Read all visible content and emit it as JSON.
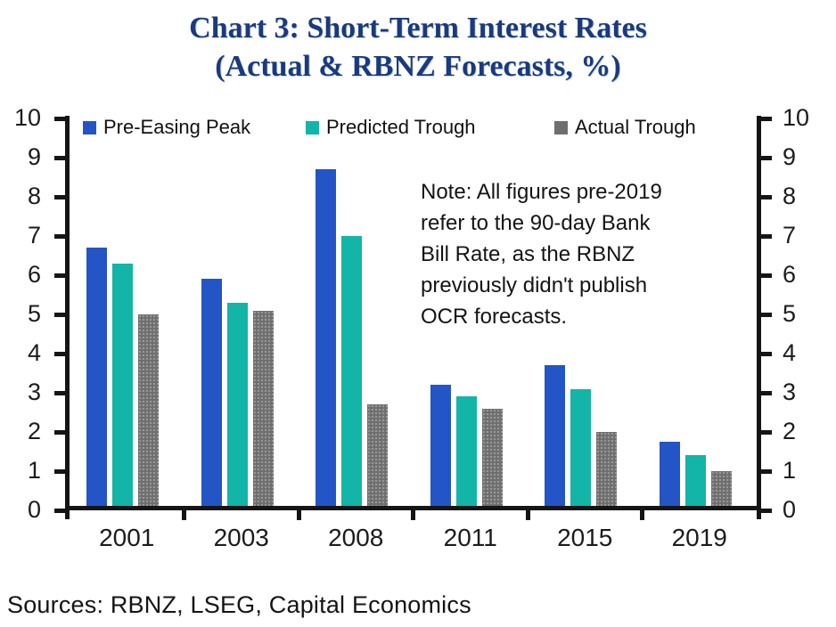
{
  "title": {
    "line1": "Chart 3: Short-Term Interest Rates",
    "line2": "(Actual & RBNZ Forecasts, %)"
  },
  "note": {
    "lines": [
      "Note: All figures pre-2019",
      "refer to the 90-day Bank",
      "Bill Rate, as the RBNZ",
      "previously didn't publish",
      "OCR forecasts."
    ]
  },
  "sources": "Sources: RBNZ, LSEG, Capital Economics",
  "colors": {
    "title_navy": "#1a3a7e",
    "axis_black": "#151515",
    "pre_easing_peak_blue": "#2355c7",
    "predicted_trough_teal": "#12b5a8",
    "actual_trough_gray": "#6f6f6f"
  },
  "chart_data": {
    "type": "bar",
    "title": "Chart 3: Short-Term Interest Rates (Actual & RBNZ Forecasts, %)",
    "categories": [
      "2001",
      "2003",
      "2008",
      "2011",
      "2015",
      "2019"
    ],
    "series": [
      {
        "name": "Pre-Easing Peak",
        "color_key": "pre_easing_peak_blue",
        "values": [
          6.7,
          5.9,
          8.7,
          3.2,
          3.7,
          1.75
        ]
      },
      {
        "name": "Predicted Trough",
        "color_key": "predicted_trough_teal",
        "values": [
          6.3,
          5.3,
          7.0,
          2.9,
          3.1,
          1.4
        ]
      },
      {
        "name": "Actual Trough",
        "color_key": "actual_trough_gray",
        "values": [
          5.0,
          5.1,
          2.7,
          2.6,
          2.0,
          1.0
        ]
      }
    ],
    "ylim": [
      0,
      10
    ],
    "yticks": [
      0,
      1,
      2,
      3,
      4,
      5,
      6,
      7,
      8,
      9,
      10
    ],
    "dual_y_axis": true,
    "grid": false,
    "legend_position": "top-inside"
  }
}
